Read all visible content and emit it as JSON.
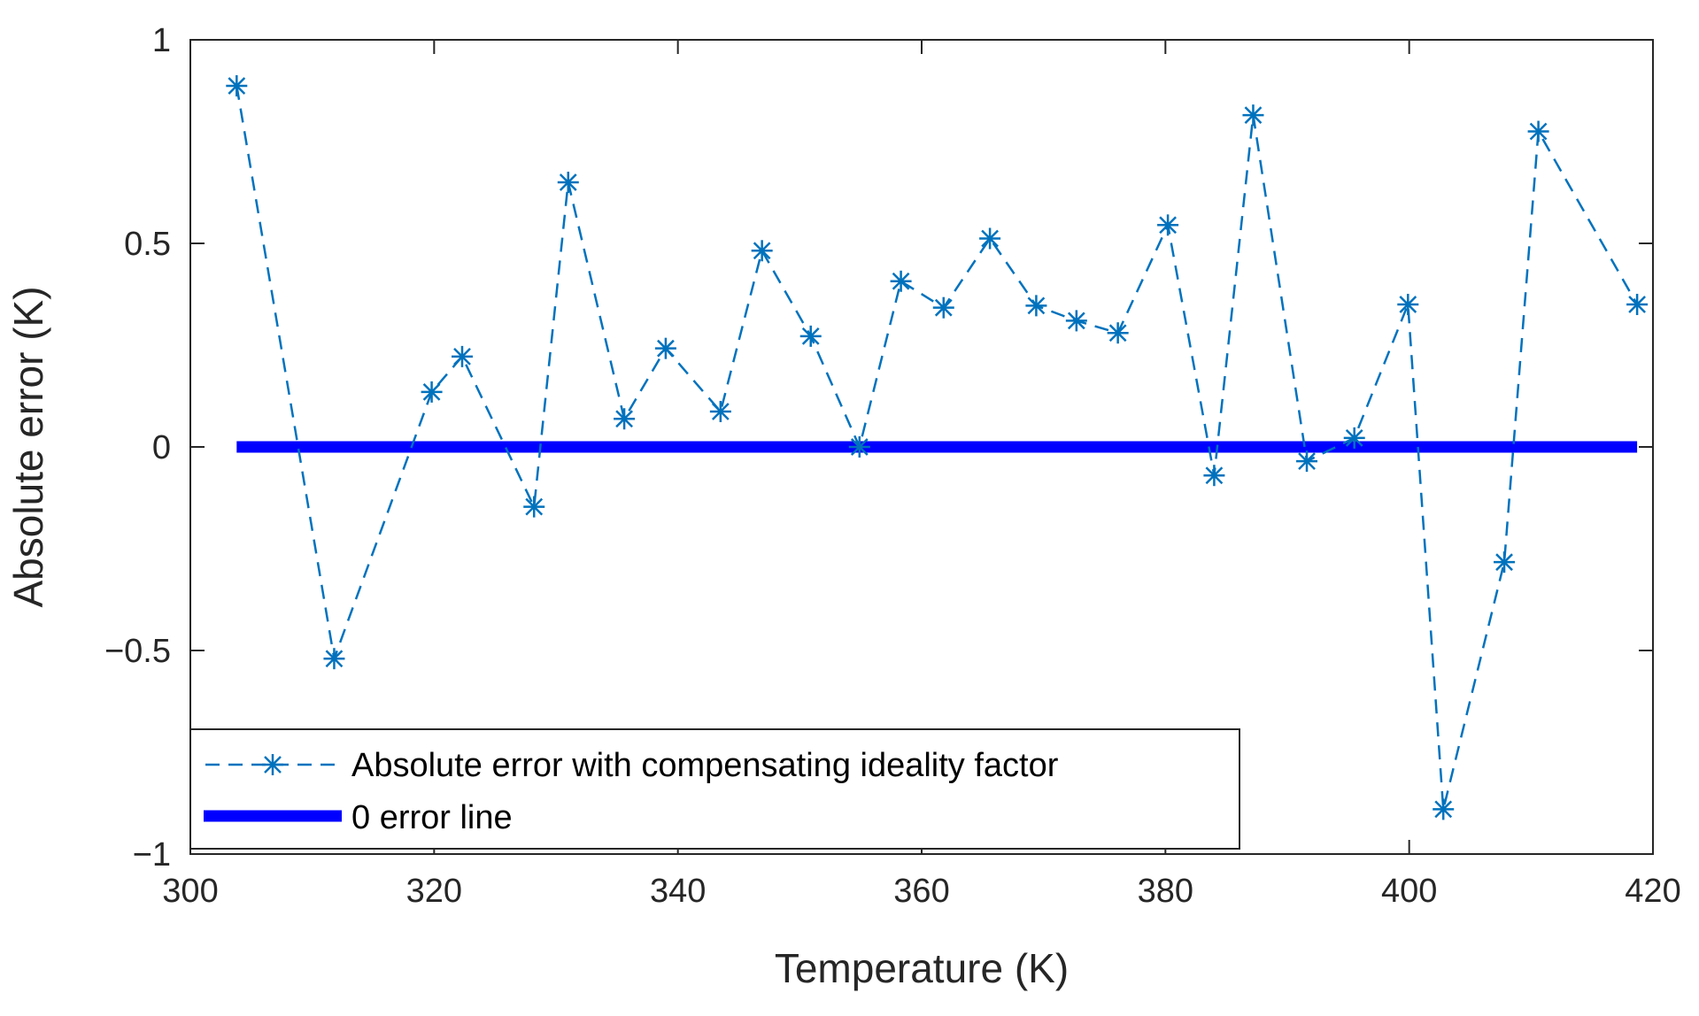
{
  "chart_data": {
    "type": "line",
    "xlabel": "Temperature (K)",
    "ylabel": "Absolute error (K)",
    "xlim": [
      300,
      420
    ],
    "ylim": [
      -1,
      1
    ],
    "xticks": [
      300,
      320,
      340,
      360,
      380,
      400,
      420
    ],
    "xtick_labels": [
      "300",
      "320",
      "340",
      "360",
      "380",
      "400",
      "420"
    ],
    "yticks": [
      1,
      0.5,
      0,
      -0.5,
      -1
    ],
    "ytick_labels": [
      "1",
      "0.5",
      "0",
      "−0.5",
      "−1"
    ],
    "grid": false,
    "legend_position": "bottom-left",
    "series": [
      {
        "name": "Absolute error with compensating ideality factor",
        "color": "#0072BD",
        "line_style": "dashed",
        "marker": "asterisk",
        "x": [
          303.8,
          311.8,
          319.8,
          322.3,
          328.2,
          331.0,
          335.6,
          339.0,
          343.5,
          346.9,
          350.9,
          354.9,
          358.3,
          361.8,
          365.6,
          369.4,
          372.7,
          376.1,
          380.2,
          384.0,
          387.2,
          391.6,
          395.5,
          399.9,
          402.8,
          407.8,
          410.6,
          418.7
        ],
        "y": [
          0.887,
          -0.52,
          0.135,
          0.222,
          -0.147,
          0.65,
          0.069,
          0.242,
          0.087,
          0.482,
          0.272,
          0.0,
          0.407,
          0.342,
          0.512,
          0.347,
          0.31,
          0.28,
          0.545,
          -0.07,
          0.815,
          -0.035,
          0.022,
          0.35,
          -0.89,
          -0.283,
          0.775,
          0.35
        ]
      },
      {
        "name": "0 error line",
        "color": "#0000FF",
        "line_style": "solid",
        "x": [
          303.8,
          418.7
        ],
        "y": [
          0,
          0
        ]
      }
    ]
  }
}
